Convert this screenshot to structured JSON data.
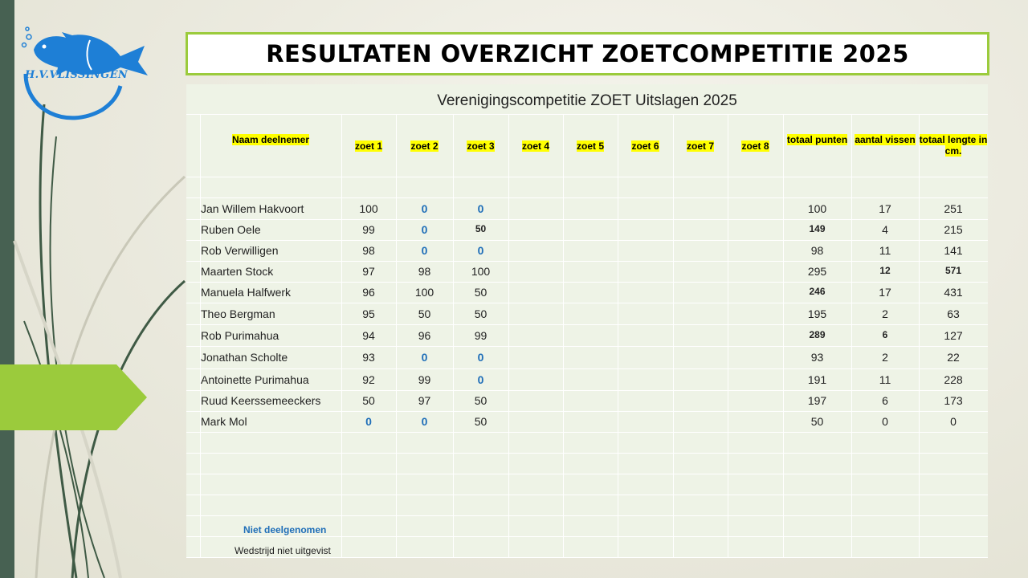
{
  "logo": {
    "text": "H.V.VLISSINGEN"
  },
  "slide_title": "RESULTATEN OVERZICHT ZOETCOMPETITIE 2025",
  "table_title": "Verenigingscompetitie ZOET Uitslagen 2025",
  "headers": [
    "Naam deelnemer",
    "zoet 1",
    "zoet 2",
    "zoet 3",
    "zoet 4",
    "zoet 5",
    "zoet 6",
    "zoet 7",
    "zoet 8",
    "totaal punten",
    "aantal vissen",
    "totaal lengte in cm."
  ],
  "rows": [
    {
      "name": "Jan Willem Hakvoort",
      "z1": "100",
      "z2": "0",
      "z3": "0",
      "total": "100",
      "fish": "17",
      "length": "251"
    },
    {
      "name": "Ruben Oele",
      "z1": "99",
      "z2": "0",
      "z3": "50",
      "total": "149",
      "fish": "4",
      "length": "215"
    },
    {
      "name": "Rob Verwilligen",
      "z1": "98",
      "z2": "0",
      "z3": "0",
      "total": "98",
      "fish": "11",
      "length": "141"
    },
    {
      "name": "Maarten Stock",
      "z1": "97",
      "z2": "98",
      "z3": "100",
      "total": "295",
      "fish": "12",
      "length": "571"
    },
    {
      "name": "Manuela Halfwerk",
      "z1": "96",
      "z2": "100",
      "z3": "50",
      "total": "246",
      "fish": "17",
      "length": "431"
    },
    {
      "name": "Theo Bergman",
      "z1": "95",
      "z2": "50",
      "z3": "50",
      "total": "195",
      "fish": "2",
      "length": "63"
    },
    {
      "name": "Rob Purimahua",
      "z1": "94",
      "z2": "96",
      "z3": "99",
      "total": "289",
      "fish": "6",
      "length": "127"
    },
    {
      "name": "Jonathan Scholte",
      "z1": "93",
      "z2": "0",
      "z3": "0",
      "total": "93",
      "fish": "2",
      "length": "22"
    },
    {
      "name": "Antoinette Purimahua",
      "z1": "92",
      "z2": "99",
      "z3": "0",
      "total": "191",
      "fish": "11",
      "length": "228"
    },
    {
      "name": "Ruud Keerssemeeckers",
      "z1": "50",
      "z2": "97",
      "z3": "50",
      "total": "197",
      "fish": "6",
      "length": "173"
    },
    {
      "name": "Mark Mol",
      "z1": "0",
      "z2": "0",
      "z3": "50",
      "total": "50",
      "fish": "0",
      "length": "0"
    }
  ],
  "legend": {
    "not_participated": "Niet deelgenomen",
    "not_held": "Wedstrijd niet uitgevist"
  },
  "colors": {
    "accent_green": "#9bcb3c",
    "sidebar_dark": "#476152",
    "zero_blue": "#1f6eb8",
    "logo_blue": "#1e7fd6",
    "header_highlight": "#ffff00"
  }
}
